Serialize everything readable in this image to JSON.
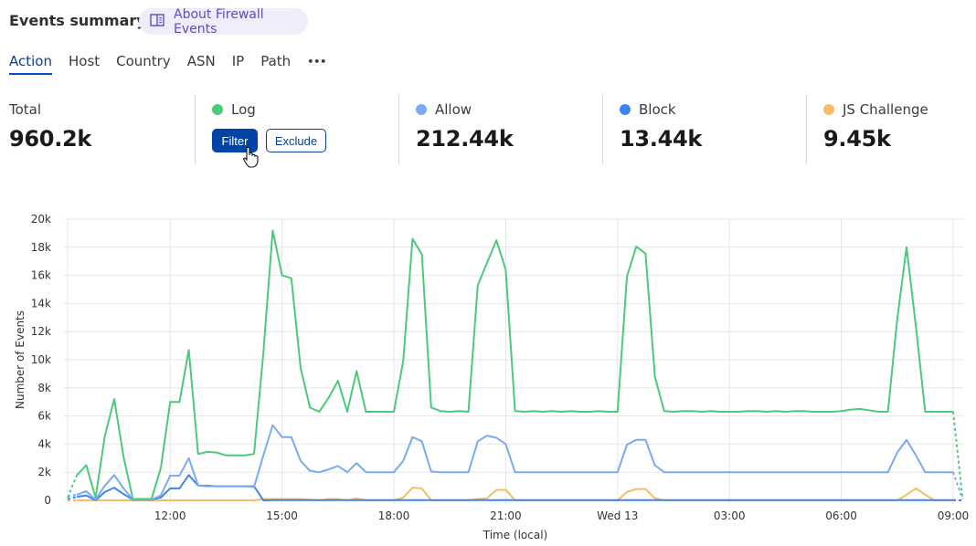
{
  "header": {
    "title": "Events summary",
    "about_link": "About Firewall Events",
    "about_icon": "book-icon"
  },
  "tabs": [
    {
      "label": "Action",
      "active": true
    },
    {
      "label": "Host"
    },
    {
      "label": "Country"
    },
    {
      "label": "ASN"
    },
    {
      "label": "IP"
    },
    {
      "label": "Path"
    },
    {
      "label": "•••"
    }
  ],
  "stats": {
    "total": {
      "label": "Total",
      "value": "960.2k"
    },
    "log": {
      "label": "Log",
      "value": "",
      "color": "#4cc97a",
      "filter_label": "Filter",
      "exclude_label": "Exclude"
    },
    "allow": {
      "label": "Allow",
      "value": "212.44k",
      "color": "#7aaaf0"
    },
    "block": {
      "label": "Block",
      "value": "13.44k",
      "color": "#3a86ee"
    },
    "js_challenge": {
      "label": "JS Challenge",
      "value": "9.45k",
      "color": "#f5bc6a"
    }
  },
  "chart_data": {
    "type": "line",
    "xlabel": "Time (local)",
    "ylabel": "Number of Events",
    "x_start": "09:15",
    "x_step_minutes": 15,
    "x_tick_labels": [
      "12:00",
      "15:00",
      "18:00",
      "21:00",
      "Wed 13",
      "03:00",
      "06:00",
      "09:00"
    ],
    "y_tick_labels": [
      "0",
      "2k",
      "4k",
      "6k",
      "8k",
      "10k",
      "12k",
      "14k",
      "16k",
      "18k",
      "20k"
    ],
    "ylim": [
      0,
      20000
    ],
    "grid": true,
    "series": [
      {
        "name": "Log",
        "color": "#4cc97a",
        "values": [
          200,
          1800,
          2500,
          200,
          4600,
          7200,
          3100,
          100,
          100,
          100,
          2300,
          7000,
          7000,
          10700,
          3300,
          3450,
          3400,
          3200,
          3200,
          3200,
          3300,
          10500,
          19200,
          16000,
          15800,
          9400,
          6600,
          6300,
          7300,
          8500,
          6300,
          9200,
          6300,
          6300,
          6300,
          6300,
          9900,
          18600,
          17500,
          6600,
          6350,
          6300,
          6350,
          6300,
          15300,
          16900,
          18500,
          16400,
          6350,
          6300,
          6350,
          6300,
          6350,
          6300,
          6350,
          6300,
          6300,
          6350,
          6300,
          6300,
          15900,
          18050,
          17550,
          8800,
          6350,
          6300,
          6350,
          6350,
          6300,
          6350,
          6300,
          6300,
          6300,
          6350,
          6350,
          6300,
          6350,
          6300,
          6350,
          6350,
          6300,
          6300,
          6300,
          6350,
          6450,
          6500,
          6400,
          6300,
          6300,
          12900,
          18000,
          12400,
          6300,
          6300,
          6300,
          6300,
          200
        ]
      },
      {
        "name": "Allow",
        "color": "#7aaaf0",
        "values": [
          300,
          400,
          650,
          50,
          1050,
          1800,
          850,
          50,
          50,
          50,
          350,
          1750,
          1750,
          3000,
          1050,
          1000,
          1000,
          1000,
          1000,
          1000,
          950,
          3200,
          5350,
          4500,
          4500,
          2800,
          2100,
          2000,
          2200,
          2450,
          2000,
          2650,
          2000,
          2000,
          2000,
          2000,
          2800,
          4500,
          4200,
          2050,
          2000,
          2000,
          2000,
          2000,
          4200,
          4600,
          4450,
          4000,
          2000,
          2000,
          2000,
          2000,
          2000,
          2000,
          2000,
          2000,
          2000,
          2000,
          2000,
          2000,
          3950,
          4300,
          4300,
          2500,
          2000,
          2000,
          2000,
          2000,
          2000,
          2000,
          2000,
          2000,
          2000,
          2000,
          2000,
          2000,
          2000,
          2000,
          2000,
          2000,
          2000,
          2000,
          2000,
          2000,
          2000,
          2000,
          2000,
          2000,
          2000,
          3400,
          4300,
          3200,
          2000,
          2000,
          2000,
          2000,
          100
        ]
      },
      {
        "name": "Block",
        "color": "#3a86ee",
        "values": [
          100,
          250,
          350,
          0,
          600,
          900,
          450,
          50,
          50,
          50,
          200,
          850,
          850,
          1800,
          1050,
          1050,
          1000,
          1000,
          1000,
          1000,
          1000,
          0,
          20,
          20,
          20,
          20,
          20,
          20,
          20,
          20,
          20,
          20,
          20,
          20,
          20,
          20,
          20,
          20,
          20,
          20,
          20,
          20,
          20,
          20,
          20,
          20,
          20,
          20,
          20,
          20,
          20,
          20,
          20,
          20,
          20,
          20,
          20,
          20,
          20,
          20,
          20,
          20,
          20,
          20,
          20,
          20,
          20,
          20,
          20,
          20,
          20,
          20,
          20,
          20,
          20,
          20,
          20,
          20,
          20,
          20,
          20,
          20,
          20,
          20,
          20,
          20,
          20,
          20,
          20,
          20,
          20,
          20,
          20,
          20,
          20,
          20,
          0
        ]
      },
      {
        "name": "JS Challenge",
        "color": "#f5bc6a",
        "values": [
          0,
          0,
          0,
          0,
          0,
          0,
          0,
          0,
          0,
          0,
          0,
          0,
          0,
          0,
          0,
          0,
          0,
          0,
          0,
          0,
          0,
          100,
          100,
          100,
          100,
          100,
          50,
          0,
          100,
          100,
          0,
          150,
          0,
          0,
          0,
          0,
          200,
          900,
          850,
          0,
          0,
          0,
          0,
          0,
          100,
          150,
          750,
          750,
          0,
          0,
          0,
          0,
          0,
          0,
          0,
          0,
          0,
          0,
          0,
          0,
          600,
          800,
          800,
          150,
          0,
          0,
          0,
          0,
          0,
          0,
          0,
          0,
          0,
          0,
          0,
          0,
          0,
          0,
          0,
          0,
          0,
          0,
          0,
          0,
          0,
          0,
          0,
          0,
          0,
          0,
          400,
          850,
          400,
          0,
          0,
          0,
          0
        ]
      }
    ]
  }
}
